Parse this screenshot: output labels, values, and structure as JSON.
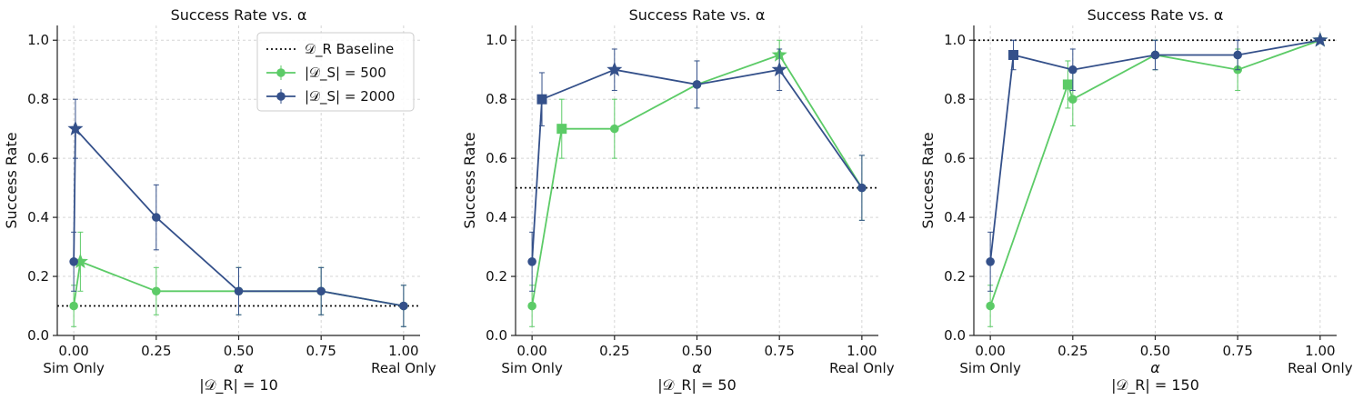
{
  "colors": {
    "green": "#5ccb67",
    "blue": "#34508a",
    "baseline": "#111111"
  },
  "legend": {
    "baseline": "𝒟_R Baseline",
    "s500": "|𝒟_S| = 500",
    "s2000": "|𝒟_S| = 2000"
  },
  "chart_data": [
    {
      "type": "line",
      "title": "Success Rate vs. α",
      "xlabel": "α",
      "sublabel": "|𝒟_R| = 10",
      "ylabel": "Success Rate",
      "xlim": [
        -0.05,
        1.05
      ],
      "ylim": [
        0.0,
        1.05
      ],
      "xticks": [
        0.0,
        0.25,
        0.5,
        0.75,
        1.0
      ],
      "xtick_labels": [
        "0.00",
        "0.25",
        "0.50",
        "0.75",
        "1.00"
      ],
      "yticks": [
        0.0,
        0.2,
        0.4,
        0.6,
        0.8,
        1.0
      ],
      "ytick_labels": [
        "0.0",
        "0.2",
        "0.4",
        "0.6",
        "0.8",
        "1.0"
      ],
      "x_end_labels": [
        "Sim Only",
        "Real Only"
      ],
      "grid": true,
      "legend_position": "top-right",
      "baseline": 0.1,
      "series": [
        {
          "name": "|𝒟_S| = 500",
          "color": "green",
          "x": [
            0.0,
            0.02,
            0.25,
            0.5,
            0.75,
            1.0
          ],
          "y": [
            0.1,
            0.25,
            0.15,
            0.15,
            0.15,
            0.1
          ],
          "err": [
            0.07,
            0.1,
            0.08,
            0.08,
            0.08,
            0.07
          ],
          "markers": [
            "circle",
            "star",
            "circle",
            "circle",
            "circle",
            "circle"
          ]
        },
        {
          "name": "|𝒟_S| = 2000",
          "color": "blue",
          "x": [
            0.0,
            0.005,
            0.25,
            0.5,
            0.75,
            1.0
          ],
          "y": [
            0.25,
            0.7,
            0.4,
            0.15,
            0.15,
            0.1
          ],
          "err": [
            0.1,
            0.1,
            0.11,
            0.08,
            0.08,
            0.07
          ],
          "markers": [
            "circle",
            "star",
            "circle",
            "circle",
            "circle",
            "circle"
          ]
        }
      ]
    },
    {
      "type": "line",
      "title": "Success Rate vs. α",
      "xlabel": "α",
      "sublabel": "|𝒟_R| = 50",
      "ylabel": "Success Rate",
      "xlim": [
        -0.05,
        1.05
      ],
      "ylim": [
        0.0,
        1.05
      ],
      "xticks": [
        0.0,
        0.25,
        0.5,
        0.75,
        1.0
      ],
      "xtick_labels": [
        "0.00",
        "0.25",
        "0.50",
        "0.75",
        "1.00"
      ],
      "yticks": [
        0.0,
        0.2,
        0.4,
        0.6,
        0.8,
        1.0
      ],
      "ytick_labels": [
        "0.0",
        "0.2",
        "0.4",
        "0.6",
        "0.8",
        "1.0"
      ],
      "x_end_labels": [
        "Sim Only",
        "Real Only"
      ],
      "grid": true,
      "baseline": 0.5,
      "series": [
        {
          "name": "|𝒟_S| = 500",
          "color": "green",
          "x": [
            0.0,
            0.09,
            0.25,
            0.5,
            0.75,
            1.0
          ],
          "y": [
            0.1,
            0.7,
            0.7,
            0.85,
            0.95,
            0.5
          ],
          "err": [
            0.07,
            0.1,
            0.1,
            0.08,
            0.05,
            0.11
          ],
          "markers": [
            "circle",
            "square",
            "circle",
            "circle",
            "star",
            "circle"
          ]
        },
        {
          "name": "|𝒟_S| = 2000",
          "color": "blue",
          "x": [
            0.0,
            0.03,
            0.25,
            0.5,
            0.75,
            1.0
          ],
          "y": [
            0.25,
            0.8,
            0.9,
            0.85,
            0.9,
            0.5
          ],
          "err": [
            0.1,
            0.09,
            0.07,
            0.08,
            0.07,
            0.11
          ],
          "markers": [
            "circle",
            "square",
            "star",
            "circle",
            "star",
            "circle"
          ]
        }
      ]
    },
    {
      "type": "line",
      "title": "Success Rate vs. α",
      "xlabel": "α",
      "sublabel": "|𝒟_R| = 150",
      "ylabel": "Success Rate",
      "xlim": [
        -0.05,
        1.05
      ],
      "ylim": [
        0.0,
        1.05
      ],
      "xticks": [
        0.0,
        0.25,
        0.5,
        0.75,
        1.0
      ],
      "xtick_labels": [
        "0.00",
        "0.25",
        "0.50",
        "0.75",
        "1.00"
      ],
      "yticks": [
        0.0,
        0.2,
        0.4,
        0.6,
        0.8,
        1.0
      ],
      "ytick_labels": [
        "0.0",
        "0.2",
        "0.4",
        "0.6",
        "0.8",
        "1.0"
      ],
      "x_end_labels": [
        "Sim Only",
        "Real Only"
      ],
      "grid": true,
      "baseline": 1.0,
      "series": [
        {
          "name": "|𝒟_S| = 500",
          "color": "green",
          "x": [
            0.0,
            0.235,
            0.25,
            0.5,
            0.75,
            1.0
          ],
          "y": [
            0.1,
            0.85,
            0.8,
            0.95,
            0.9,
            1.0
          ],
          "err": [
            0.07,
            0.08,
            0.09,
            0.05,
            0.07,
            0.0
          ],
          "markers": [
            "circle",
            "square",
            "circle",
            "circle",
            "circle",
            "star"
          ]
        },
        {
          "name": "|𝒟_S| = 2000",
          "color": "blue",
          "x": [
            0.0,
            0.07,
            0.25,
            0.5,
            0.75,
            1.0
          ],
          "y": [
            0.25,
            0.95,
            0.9,
            0.95,
            0.95,
            1.0
          ],
          "err": [
            0.1,
            0.05,
            0.07,
            0.05,
            0.05,
            0.0
          ],
          "markers": [
            "circle",
            "square",
            "circle",
            "circle",
            "circle",
            "star"
          ]
        }
      ]
    }
  ]
}
